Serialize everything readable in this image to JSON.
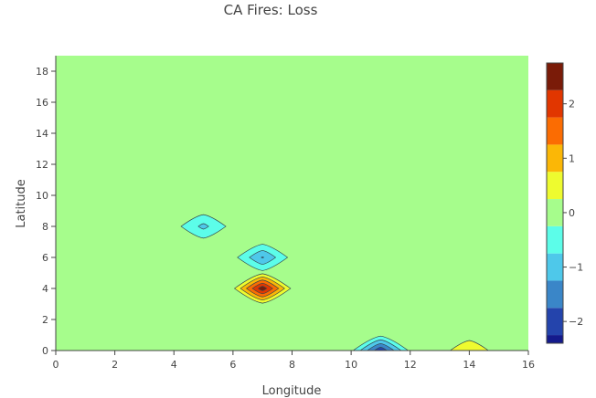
{
  "chart_data": {
    "type": "contour",
    "title": "CA Fires: Loss",
    "xlabel": "Longitude",
    "ylabel": "Latitude",
    "xlim": [
      0,
      16
    ],
    "ylim": [
      0,
      19
    ],
    "x_ticks": [
      "0",
      "2",
      "4",
      "6",
      "8",
      "10",
      "12",
      "14",
      "16"
    ],
    "y_ticks": [
      "0",
      "2",
      "4",
      "6",
      "8",
      "10",
      "12",
      "14",
      "16",
      "18"
    ],
    "colorbar": {
      "range": [
        -2.4,
        2.75
      ],
      "levels": [
        -2.25,
        -1.75,
        -1.25,
        -0.75,
        -0.25,
        0.25,
        0.75,
        1.25,
        1.75,
        2.25
      ],
      "colors": [
        "#141a8c",
        "#2444ac",
        "#3a86c8",
        "#4ec8ea",
        "#5cfde9",
        "#a6fd8c",
        "#eefb2f",
        "#fbb706",
        "#fb6c02",
        "#e13600",
        "#7a1b08"
      ],
      "ticks": [
        "−2",
        "−1",
        "0",
        "1",
        "2"
      ],
      "tick_values": [
        -2,
        -1,
        0,
        1,
        2
      ]
    },
    "features": [
      {
        "x": 7,
        "y": 4,
        "value": 2.6
      },
      {
        "x": 7,
        "y": 6,
        "value": -1.3
      },
      {
        "x": 5,
        "y": 8,
        "value": -0.9
      },
      {
        "x": 11,
        "y": 0,
        "value": -2.2
      },
      {
        "x": 14,
        "y": 0,
        "value": 0.65
      }
    ]
  }
}
